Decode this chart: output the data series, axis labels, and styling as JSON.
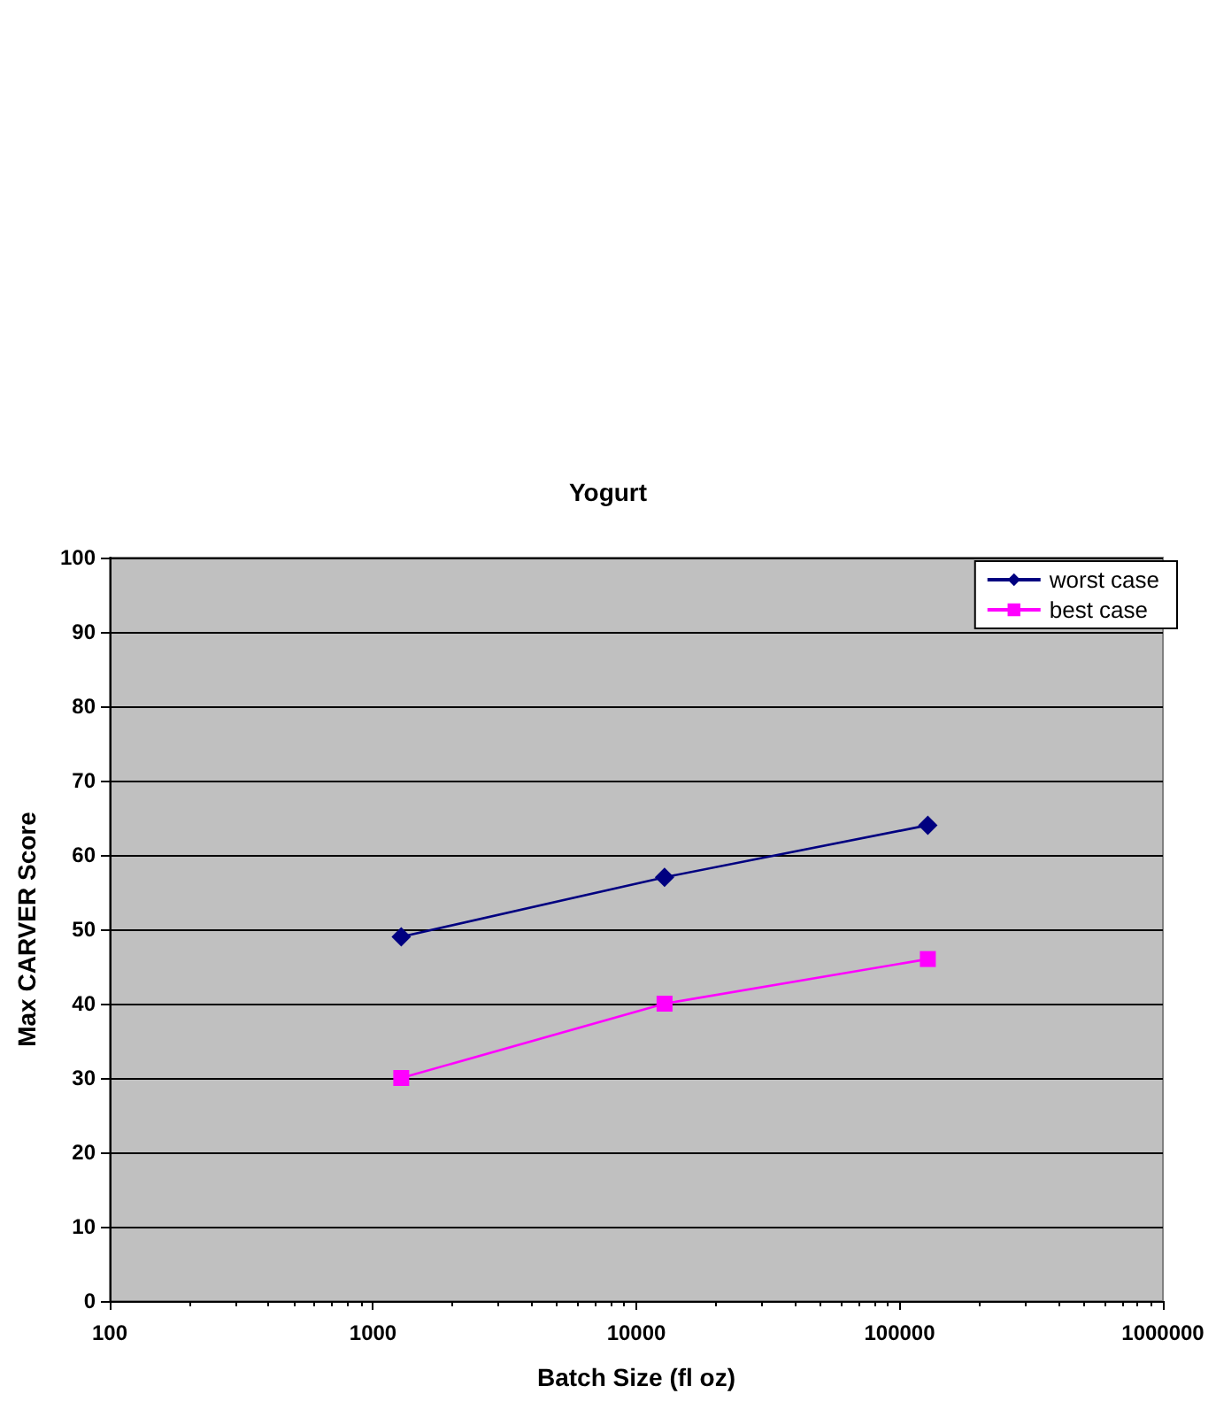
{
  "chart_data": {
    "type": "line",
    "title": "Yogurt",
    "xlabel": "Batch Size (fl oz)",
    "ylabel": "Max CARVER Score",
    "x": [
      1280,
      12800,
      128000
    ],
    "series": [
      {
        "name": "worst case",
        "color": "#000080",
        "marker": "diamond",
        "values": [
          49,
          57,
          64
        ]
      },
      {
        "name": "best case",
        "color": "#ff00ff",
        "marker": "square",
        "values": [
          30,
          40,
          46
        ]
      }
    ],
    "log": "x",
    "xlim": [
      100,
      1000000
    ],
    "xticks": [
      100,
      1000,
      10000,
      100000,
      1000000
    ],
    "ylim": [
      0,
      100
    ],
    "yticks": [
      0,
      10,
      20,
      30,
      40,
      50,
      60,
      70,
      80,
      90,
      100
    ],
    "grid": "y",
    "legend": "top right",
    "line_style": "solid"
  }
}
